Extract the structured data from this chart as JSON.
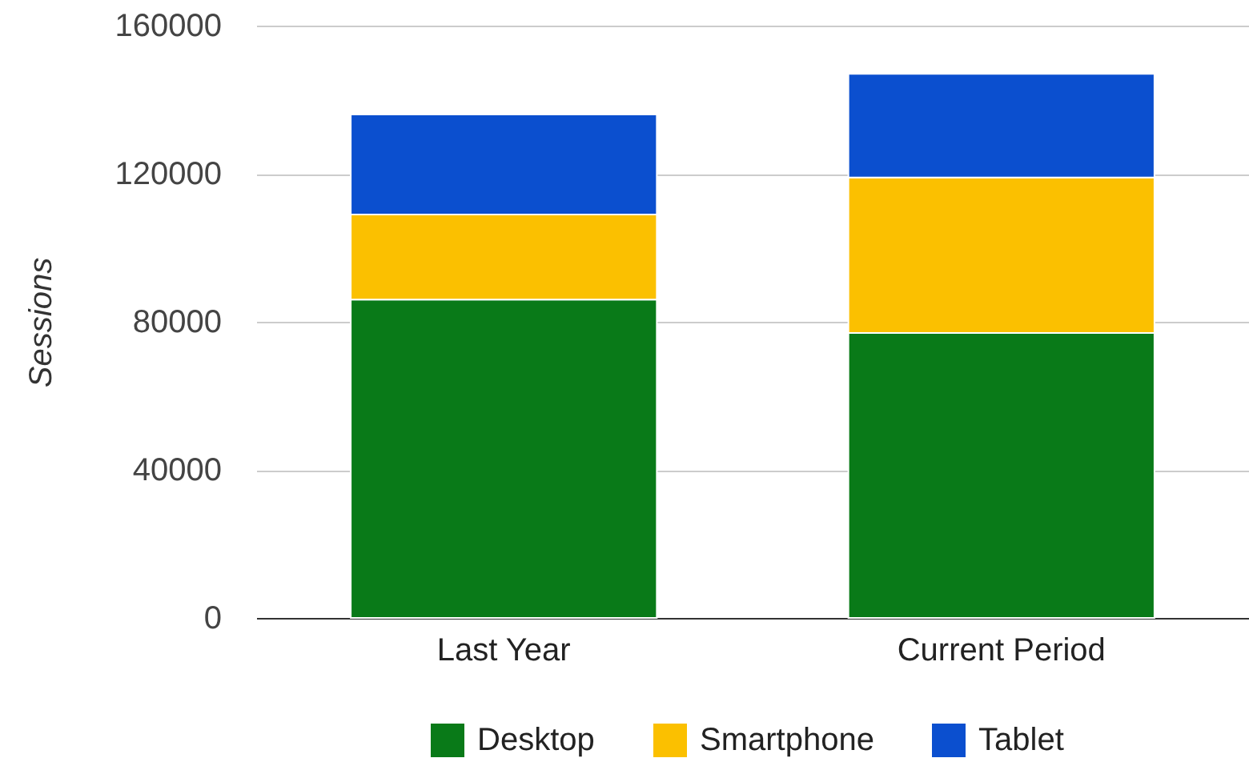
{
  "chart_data": {
    "type": "bar",
    "ylabel": "Sessions",
    "categories": [
      "Last Year",
      "Current Period"
    ],
    "series": [
      {
        "name": "Desktop",
        "color": "#097a18",
        "values": [
          86000,
          77000
        ]
      },
      {
        "name": "Smartphone",
        "color": "#fbc000",
        "values": [
          23000,
          42000
        ]
      },
      {
        "name": "Tablet",
        "color": "#0b4fcf",
        "values": [
          27000,
          28000
        ]
      }
    ],
    "stacked": true,
    "ylim": [
      0,
      160000
    ],
    "yticks": [
      0,
      40000,
      80000,
      120000,
      160000
    ],
    "grid": "y",
    "legend": "bottom"
  }
}
